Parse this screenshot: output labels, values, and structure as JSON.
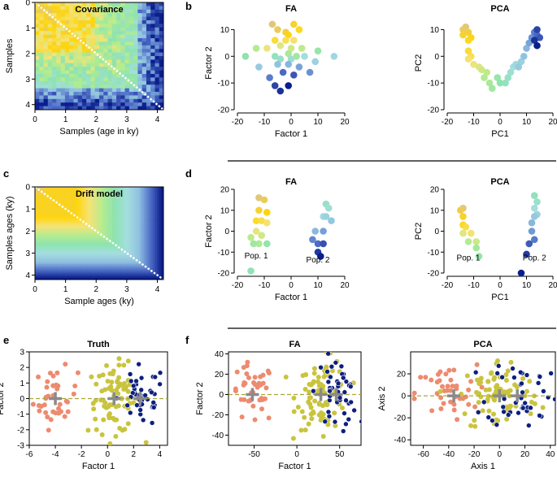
{
  "panel_letters": [
    "a",
    "b",
    "c",
    "d",
    "e",
    "f"
  ],
  "colors": {
    "sample_gradient": [
      "#e2c77a",
      "#ffd60a",
      "#f4e37a",
      "#b5ec8e",
      "#8ee3b0",
      "#a4dde0",
      "#8fc0e0",
      "#4f6ec8",
      "#0a1e8c"
    ],
    "pop_blue": "#0d1f7e",
    "pop_olive": "#c9c43e",
    "pop_salmon": "#ec8b70",
    "centroid": "#8a8a8a",
    "dashed_line": "#a9a63a"
  },
  "chart_data": [
    {
      "id": "a",
      "type": "heatmap",
      "title": "Covariance",
      "xlabel": "Samples (age in ky)",
      "ylabel": "Samples",
      "xlim": [
        0,
        4.2
      ],
      "ylim": [
        0,
        4.2
      ],
      "xticks": [
        0,
        1,
        2,
        3,
        4
      ],
      "yticks": [
        0,
        1,
        2,
        3,
        4
      ],
      "diagonal": "white dashed",
      "n_samples": 30,
      "note": "noisy covariance: high (yellow) among young samples, decreasing toward old (blue)"
    },
    {
      "id": "b-fa",
      "type": "scatter",
      "title": "FA",
      "xlabel": "Factor 1",
      "ylabel": "Factor 2",
      "xlim": [
        -20,
        20
      ],
      "ylim": [
        -20,
        15
      ],
      "xticks": [
        -20,
        -10,
        0,
        10,
        20
      ],
      "yticks": [
        -20,
        -10,
        0,
        10
      ],
      "points": [
        [
          -7,
          12
        ],
        [
          -5,
          10
        ],
        [
          -2,
          9
        ],
        [
          1,
          12
        ],
        [
          -1,
          8
        ],
        [
          3,
          10
        ],
        [
          -6,
          6
        ],
        [
          -2,
          6
        ],
        [
          1,
          6
        ],
        [
          -9,
          3
        ],
        [
          -4,
          4
        ],
        [
          0,
          3
        ],
        [
          4,
          3
        ],
        [
          -13,
          3
        ],
        [
          -1,
          1
        ],
        [
          2,
          0
        ],
        [
          10,
          2
        ],
        [
          -17,
          0
        ],
        [
          -6,
          0
        ],
        [
          -4,
          -1
        ],
        [
          0,
          -1
        ],
        [
          5,
          0
        ],
        [
          16,
          0
        ],
        [
          9,
          -2
        ],
        [
          -12,
          -4
        ],
        [
          -5,
          -3
        ],
        [
          -1,
          -3
        ],
        [
          3,
          -4
        ],
        [
          7,
          -6
        ],
        [
          -8,
          -8
        ],
        [
          -3,
          -6
        ],
        [
          1,
          -7
        ],
        [
          -6,
          -11
        ],
        [
          -4,
          -13
        ],
        [
          -1,
          -11
        ]
      ]
    },
    {
      "id": "b-pca",
      "type": "scatter",
      "title": "PCA",
      "xlabel": "PC1",
      "ylabel": "PC2",
      "xlim": [
        -20,
        20
      ],
      "ylim": [
        -20,
        15
      ],
      "xticks": [
        -20,
        -10,
        0,
        10,
        20
      ],
      "yticks": [
        -20,
        -10,
        0,
        10
      ],
      "points": [
        [
          -13,
          11
        ],
        [
          -14,
          10
        ],
        [
          -12,
          9
        ],
        [
          -14,
          8
        ],
        [
          -11,
          7
        ],
        [
          -12,
          6
        ],
        [
          -12,
          2
        ],
        [
          -11,
          0
        ],
        [
          -12,
          -1
        ],
        [
          -10,
          -3
        ],
        [
          -8,
          -4
        ],
        [
          -7,
          -5
        ],
        [
          -5,
          -6
        ],
        [
          -6,
          -8
        ],
        [
          -4,
          -10
        ],
        [
          -3,
          -12
        ],
        [
          -1,
          -8
        ],
        [
          0,
          -10
        ],
        [
          2,
          -10
        ],
        [
          3,
          -8
        ],
        [
          4,
          -6
        ],
        [
          5,
          -4
        ],
        [
          6,
          -3
        ],
        [
          8,
          -2
        ],
        [
          7,
          -4
        ],
        [
          9,
          0
        ],
        [
          10,
          3
        ],
        [
          11,
          5
        ],
        [
          12,
          7
        ],
        [
          13,
          9
        ],
        [
          14,
          8
        ],
        [
          15,
          7
        ],
        [
          14,
          10
        ],
        [
          13,
          6
        ],
        [
          14,
          4
        ]
      ]
    },
    {
      "id": "c",
      "type": "heatmap",
      "title": "Drift model",
      "xlabel": "Sample ages (ky)",
      "ylabel": "Samples ages (ky)",
      "xlim": [
        0,
        4.2
      ],
      "ylim": [
        0,
        4.2
      ],
      "xticks": [
        0,
        1,
        2,
        3,
        4
      ],
      "yticks": [
        0,
        1,
        2,
        3,
        4
      ],
      "diagonal": "white dashed",
      "note": "smooth covariance cov(i,j)=f(max(ti,tj)), yellow near 0-1 ky, blue near 4 ky"
    },
    {
      "id": "d-fa",
      "type": "scatter",
      "title": "FA",
      "xlabel": "Factor 1",
      "ylabel": "Factor 2",
      "xlim": [
        -20,
        20
      ],
      "ylim": [
        -20,
        20
      ],
      "xticks": [
        -20,
        -10,
        0,
        10,
        20
      ],
      "yticks": [
        -20,
        -10,
        0,
        10,
        20
      ],
      "annotations": [
        {
          "text": "Pop. 1",
          "x": -13,
          "y": -13
        },
        {
          "text": "Pop. 2",
          "x": 10,
          "y": -15
        }
      ],
      "points": [
        [
          -12,
          16
        ],
        [
          -10,
          15
        ],
        [
          -12,
          10
        ],
        [
          -9,
          9
        ],
        [
          -13,
          5
        ],
        [
          -11,
          5
        ],
        [
          -9,
          4
        ],
        [
          -13,
          0
        ],
        [
          -11,
          -2
        ],
        [
          -15,
          -3
        ],
        [
          -12,
          -6
        ],
        [
          -14,
          -6
        ],
        [
          -9,
          -6
        ],
        [
          -15,
          -19
        ],
        [
          13,
          13
        ],
        [
          14,
          11
        ],
        [
          12,
          7
        ],
        [
          13,
          7
        ],
        [
          15,
          5
        ],
        [
          9,
          0
        ],
        [
          12,
          0
        ],
        [
          8,
          -4
        ],
        [
          10,
          -6
        ],
        [
          12,
          -6
        ],
        [
          10,
          -10
        ],
        [
          11,
          -12
        ]
      ]
    },
    {
      "id": "d-pca",
      "type": "scatter",
      "title": "PCA",
      "xlabel": "PC1",
      "ylabel": "PC2",
      "xlim": [
        -20,
        20
      ],
      "ylim": [
        -20,
        20
      ],
      "xticks": [
        -20,
        -10,
        0,
        10,
        20
      ],
      "yticks": [
        -20,
        -10,
        0,
        10,
        20
      ],
      "annotations": [
        {
          "text": "Pop. 1",
          "x": -12,
          "y": -14
        },
        {
          "text": "Pop. 2",
          "x": 13,
          "y": -14
        }
      ],
      "points": [
        [
          -14,
          11
        ],
        [
          -15,
          10
        ],
        [
          -14,
          7
        ],
        [
          -14,
          3
        ],
        [
          -13,
          2
        ],
        [
          -11,
          -1
        ],
        [
          -14,
          -1
        ],
        [
          -9,
          -5
        ],
        [
          -12,
          -5
        ],
        [
          -9,
          -8
        ],
        [
          -8,
          -12
        ],
        [
          13,
          17
        ],
        [
          14,
          14
        ],
        [
          13,
          11
        ],
        [
          14,
          8
        ],
        [
          13,
          7
        ],
        [
          12,
          4
        ],
        [
          12,
          0
        ],
        [
          13,
          -4
        ],
        [
          11,
          -6
        ],
        [
          10,
          -11
        ],
        [
          8,
          -20
        ]
      ]
    },
    {
      "id": "e",
      "type": "scatter",
      "title": "Truth",
      "xlabel": "Factor 1",
      "ylabel": "Factor 2",
      "xlim": [
        -6,
        4.6
      ],
      "ylim": [
        -3,
        3
      ],
      "xticks": [
        -6,
        -4,
        -2,
        0,
        2,
        4
      ],
      "yticks": [
        -3,
        -2,
        -1,
        0,
        1,
        2,
        3
      ],
      "hline": 0,
      "centroids": [
        [
          -4,
          0
        ],
        [
          0.5,
          0
        ],
        [
          2.5,
          0
        ]
      ],
      "populations": [
        {
          "name": "salmon",
          "n": 40,
          "cx": -4,
          "cy": 0,
          "sx": 0.85,
          "sy": 0.95
        },
        {
          "name": "olive",
          "n": 85,
          "cx": 0.6,
          "cy": 0,
          "sx": 1.05,
          "sy": 1.1
        },
        {
          "name": "blue",
          "n": 45,
          "cx": 2.6,
          "cy": 0.1,
          "sx": 0.9,
          "sy": 1.0
        }
      ]
    },
    {
      "id": "f-fa",
      "type": "scatter",
      "title": "FA",
      "xlabel": "Factor 1",
      "ylabel": "Factor 2",
      "xlim": [
        -80,
        75
      ],
      "ylim": [
        -50,
        42
      ],
      "xticks": [
        -50,
        0,
        50
      ],
      "yticks": [
        -40,
        -20,
        0,
        20,
        40
      ],
      "hline": 0,
      "centroids": [
        [
          -52,
          0
        ],
        [
          28,
          0
        ],
        [
          46,
          0
        ]
      ],
      "populations": [
        {
          "name": "salmon",
          "n": 40,
          "cx": -52,
          "cy": 0,
          "sx": 13,
          "sy": 15
        },
        {
          "name": "olive",
          "n": 85,
          "cx": 30,
          "cy": 0,
          "sx": 15,
          "sy": 17
        },
        {
          "name": "blue",
          "n": 45,
          "cx": 47,
          "cy": 2,
          "sx": 12,
          "sy": 17
        }
      ]
    },
    {
      "id": "f-pca",
      "type": "scatter",
      "title": "PCA",
      "xlabel": "Axis 1",
      "ylabel": "Axis 2",
      "xlim": [
        -70,
        44
      ],
      "ylim": [
        -45,
        40
      ],
      "xticks": [
        -60,
        -40,
        -20,
        0,
        20,
        40
      ],
      "yticks": [
        -40,
        -20,
        0,
        20
      ],
      "hline": 0,
      "centroids": [
        [
          -36,
          0
        ],
        [
          0,
          0
        ],
        [
          14,
          0
        ]
      ],
      "populations": [
        {
          "name": "salmon",
          "n": 40,
          "cx": -42,
          "cy": 2,
          "sx": 12,
          "sy": 13
        },
        {
          "name": "olive",
          "n": 85,
          "cx": 0,
          "cy": 0,
          "sx": 16,
          "sy": 17
        },
        {
          "name": "blue",
          "n": 45,
          "cx": 18,
          "cy": 4,
          "sx": 14,
          "sy": 16
        }
      ]
    }
  ]
}
